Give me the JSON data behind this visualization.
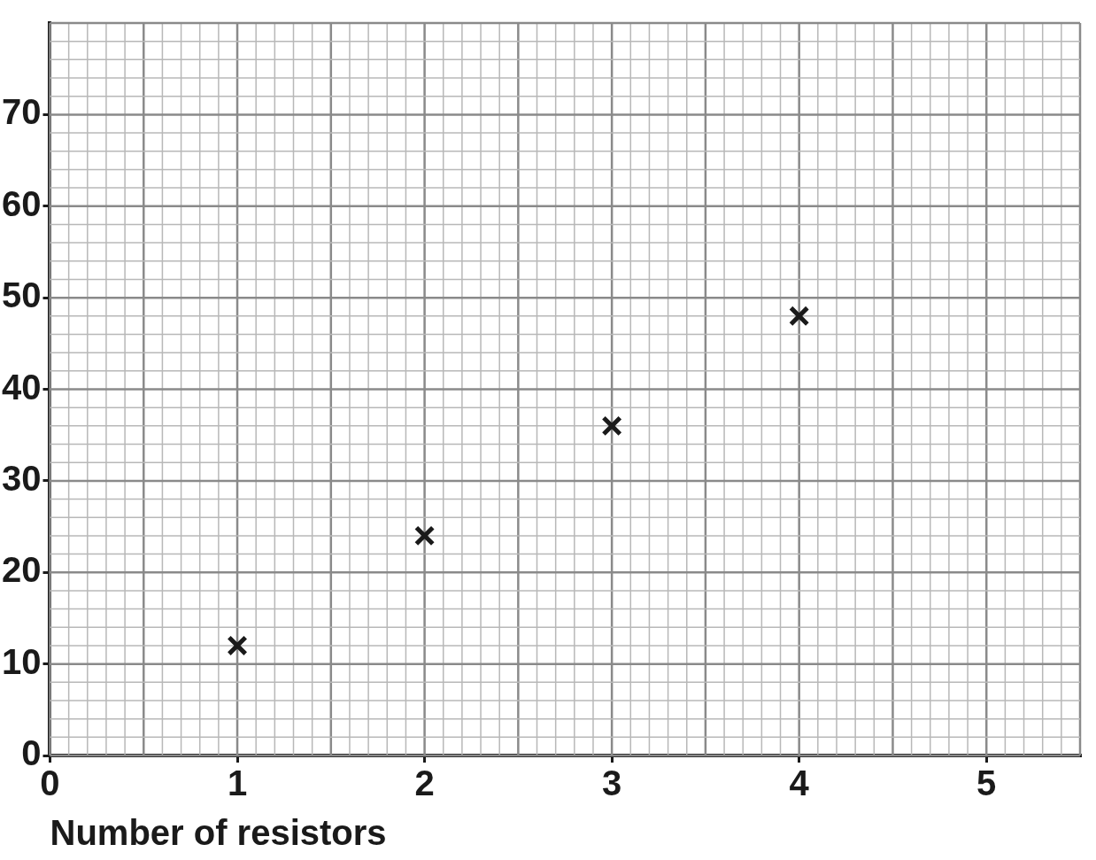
{
  "chart_data": {
    "type": "scatter",
    "xlabel": "Number of resistors",
    "x": [
      1,
      2,
      3,
      4
    ],
    "values": [
      12,
      24,
      36,
      48
    ],
    "color": "#1a1a1a",
    "marker": "cross",
    "grid": true,
    "xlim": [
      0,
      5.5
    ],
    "xticks": [
      0,
      1,
      2,
      3,
      4,
      5
    ],
    "ylim": [
      0,
      80
    ],
    "yticks": [
      0,
      10,
      20,
      30,
      40,
      50,
      60,
      70
    ]
  }
}
